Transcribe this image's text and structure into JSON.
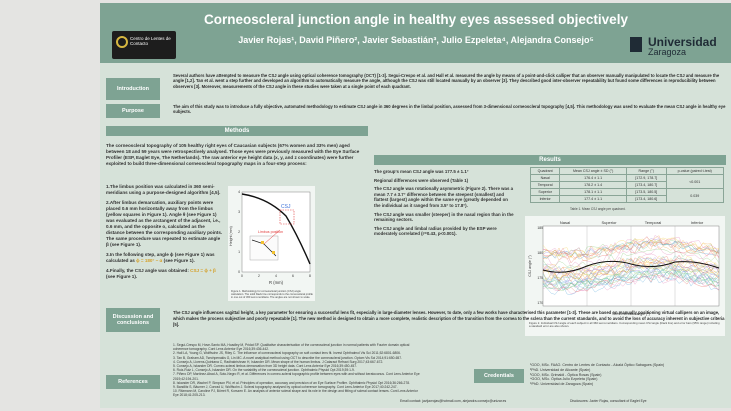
{
  "header": {
    "title": "Corneoscleral junction angle in healthy eyes assessed objectively",
    "authors": "Javier Rojas¹, David Piñero², Javier Sebastián³, Julio Ezpeleta⁴, Alejandra Consejo⁵",
    "left_logo_text": "Centro de Lentes de Contacto",
    "university_line1": "Universidad",
    "university_line2": "Zaragoza"
  },
  "introduction": {
    "label": "Introduction",
    "text": "Several authors have attempted to measure the CSJ angle using optical coherence tomography (OCT) [1-3]. Segui-Crespo et al. and Hall et al. measured the angle by means of a point-and-click calliper that an observer manually manipulated to locate the CSJ and measure the angle [1,2]. Tan et al. went a step further and developed an algorithm to automatically measure the angle, although the CSJ was still located manually by an observer [3]. They described good inter-observer repeatability but found some differences in reproducibility between observers [3]. Moreover, measurements of the CSJ angle in these studies were taken at a single point of each quadrant."
  },
  "purpose": {
    "label": "Purpose",
    "text": "The aim of this study was to introduce a fully objective, automated methodology to estimate CSJ angle in 360 degrees in the limbal position, assessed from 3-dimensional corneoscleral topography [4,5]. This methodology was used to evaluate the mean CSJ angle in healthy eye subjects."
  },
  "methods": {
    "header": "Methods",
    "intro": "The corneoscleral topography of 105 healthy right eyes of Caucasian subjects (67% women and 33% men) aged between 18 and 59 years were retrospectively analysed. Those eyes were previously measured with the Eye Surface Profiler (ESP, Eaglet Eye, The Netherlands). The raw anterior eye height data (x, y, and z coordinates) were further exploited to build three-dimensional corneoscleral topography maps in a four-step process:",
    "step1": "1.The limbus position was calculated in 360 semi-meridians using a purpose-designed algorithm [4,5].",
    "step2": "2.After limbus demarcation, auxiliary points were placed 0.6 mm horizontally away from the limbus (yellow squares in Figure 1). Angle θ (see Figure 1) was evaluated as the arctangent of the adjacent, i.e., 0.6 mm, and the opposite o, calculated as the distance between the corresponding auxiliary points. The same procedure was repeated to estimate angle β (see Figure 1).",
    "step3": "3.In the following step, angle ϕ (see Figure 1) was calculated as",
    "step3_formula": "ϕ = 180° − α",
    "step3_tail": "(see Figure 1).",
    "step4": "4.Finally, the CSJ angle was obtained:",
    "step4_formula": "CSJ = ϕ + β",
    "step4_tail": "(see Figure 1).",
    "fig1_ylabel": "Height (mm)",
    "fig1_xlabel": "R (mm)",
    "fig1_csj_label": "CSJ",
    "fig1_limbus_label": "Limbus position",
    "fig1_caption": "Figure 1. Methodology for corneoscleral junction (CSJ) angle calculation. The solid black line corresponds to the corneoscleral profile in one out of 360 semi-meridians. The angles are not shown to scale."
  },
  "fig1_axis": {
    "x_ticks": [
      "0",
      "2",
      "4",
      "6",
      "8"
    ],
    "y_ticks": [
      "0",
      "1",
      "2",
      "3",
      "4"
    ]
  },
  "results": {
    "header": "Results",
    "b1": "The group's mean CSJ angle was 177.5 ± 1.1°",
    "b2": "Regional differences were observed (Table 1)",
    "b3": "The CSJ angle was rotationally asymmetric (Figure 2). There was a mean 7.7 ± 3.7° difference between the steepest (smallest) and flattest (largest) angle within the same eye (greatly depended on the individual as it ranged from 3.5° to 17.8°).",
    "b4": "The CSJ angle was smaller (steeper) in the nasal region than in the remaining sectors.",
    "b5": "The CSJ angle and limbal radius provided by the ESP were moderately correlated (r=0.43, p<0.001).",
    "table": {
      "headers": [
        "Quadrant",
        "Mean CSJ angle ± SD (°)",
        "Range (°)",
        "p-value (paired t-test)"
      ],
      "rows": [
        [
          "Nasal",
          "176.4 ± 1.1",
          "[172.9, 178.7]",
          "<0.001"
        ],
        [
          "Temporal",
          "178.2 ± 1.4",
          "[173.4, 180.7]",
          ""
        ],
        [
          "Superior",
          "178.1 ± 1.1",
          "[173.5, 180.5]",
          "0.039"
        ],
        [
          "Inferior",
          "177.4 ± 1.1",
          "[173.4, 180.6]",
          ""
        ]
      ],
      "caption": "Table 1. Mean CSJ angle per quadrant."
    },
    "fig2": {
      "ylabel": "CSJ angle (°)",
      "xlabel": "Semi-meridian angle (°)",
      "sectors": [
        "Nasal",
        "Superior",
        "Temporal",
        "Inferior"
      ],
      "y_ticks": [
        "185",
        "180",
        "175",
        "170"
      ],
      "caption": "Figure 2. Individual CSJ angle of each subject in all 360 semi-meridians. Corresponding mean CSJ angle (black line) and error bars (95% range) including a standard error are also shown."
    }
  },
  "discussion": {
    "label": "Discussion and conclusions",
    "text": "The CSJ angle influences sagittal height, a key parameter for ensuring a successful lens fit, especially in large-diameter lenses. However, to date, only a few works have characterised this parameter [1-3]. These are based on manually positioning virtual callipers on an image, which makes the process subjective and poorly repeatable [1]. The new method is designed to obtain a more complete, realistic description of the transition from the cornea to the sclera than the current standards, and to avoid the loss of accuracy inherent in subjective criteria [5]."
  },
  "references": {
    "label": "References",
    "items": [
      "1. Segui-Crespo M, Hove-Santo MA, Hoadley M, Pridat SP. Qualitative characterisation of the corneoscleral junction in normal patients with Fourier domain optical coherence tomography. Cont Lens Anterior Eye 2016;39:436-442.",
      "2. Hall LA, Young G, Wolffsohn JS, Riley C. The influence of corneoscleral topography on soft contact lens fit. Invest Ophthalmol Vis Sci 2011;52:6801-6806.",
      "3. Tan B, Graham AD, Tsechpenakis G, Lin MC. A novel analytical method using OCT to describe the corneoscleral junction. Optom Vis Sci 2014;91:650-657.",
      "4. Consejo A, Llorens-Quintana C, Radhakrishnan H, Iskander DR. Mean shape of the human limbus. J Cataract Refract Surg 2017;43:667-672.",
      "5. Consejo A, Iskander DR. Corneo-scleral limbus demarcation from 3D height data. Cont Lens Anterior Eye 2016;39:450-457.",
      "6. Ruiz-Ruiz L, Consejo A, Iskander DR. On the variability of the corneoscleral junction. Ophthalmic Physiol Opt 2019;39:1-9.",
      "7. Piñero DP, Martínez-Abad A, Soto-Negro R, et al. Differences in corneo-scleral topographic profile between eyes with and without keratoconus. Cont Lens Anterior Eye 2019;42:194-201.",
      "8. Iskander DR, Wachel P, Simpson PN, et al. Principles of operation, accuracy and precision of an Eye Surface Profiler. Ophthalmic Physiol Opt 2016;36:266-278.",
      "9. Bandlitz S, Bäumer J, Conrad U, Wolffsohn J. Scleral topography analysed by optical coherence tomography. Cont Lens Anterior Eye 2017;40:242-247.",
      "10. Ritzmann M, Caroline PJ, Börret R, Korszen E. An analysis of anterior scleral shape and its role in the design and fitting of scleral contact lenses. Cont Lens Anterior Eye 2018;41:205-213."
    ]
  },
  "credentials": {
    "label": "Credentials",
    "items": [
      "¹GOO, MSc. FAAO. Centro de Lentes de Contacto - Alcalá Óptico Sabagues (Spain)",
      "²PhD. Universidad de Alicante (Spain)",
      "³GOO, MSc. Grimaldi - Óptica Rosas (Spain)",
      "⁴GOO, MSc. Óptica Julio Ezpeleta (Spain)",
      "⁵PhD. Universidad de Zaragoza (Spain)"
    ]
  },
  "footer": {
    "emails": "Email contact: javijavrojas@hotmail.com, alejandra.consejo@unizar.es",
    "disclosure": "Disclosures: Javier Rojas, consultant of Eaglet Eye"
  }
}
